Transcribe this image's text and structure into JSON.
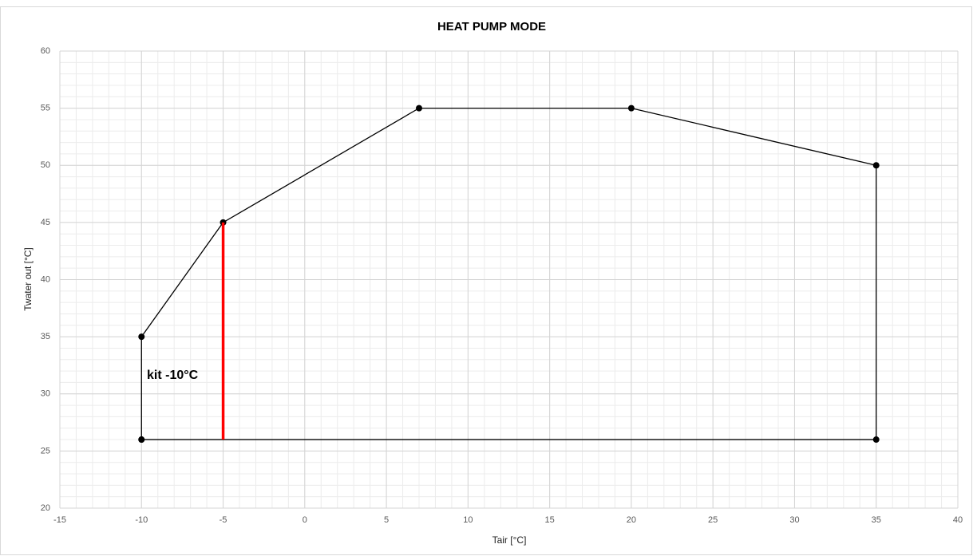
{
  "chart_data": {
    "type": "line",
    "title": "HEAT PUMP MODE",
    "x_label": "Tair [°C]",
    "y_label": "Twater out [°C]",
    "annotation": "kit -10°C",
    "xlim": [
      -15,
      40
    ],
    "xticks": [
      -15,
      -10,
      -5,
      0,
      5,
      10,
      15,
      20,
      25,
      30,
      35,
      40
    ],
    "ylim": [
      20,
      60
    ],
    "yticks": [
      20,
      25,
      30,
      35,
      40,
      45,
      50,
      55,
      60
    ],
    "grid": true,
    "minor_step": 1,
    "series": [
      {
        "color": "#000000",
        "markers": true,
        "line_width": 1.3,
        "x": [
          -10,
          -10,
          -5,
          7,
          20,
          35,
          35,
          -10
        ],
        "values": [
          26,
          35,
          45,
          55,
          55,
          50,
          26,
          26
        ]
      },
      {
        "color": "#ff0000",
        "markers": false,
        "line_width": 3.5,
        "x": [
          -5,
          -5
        ],
        "values": [
          26,
          45
        ]
      }
    ]
  }
}
